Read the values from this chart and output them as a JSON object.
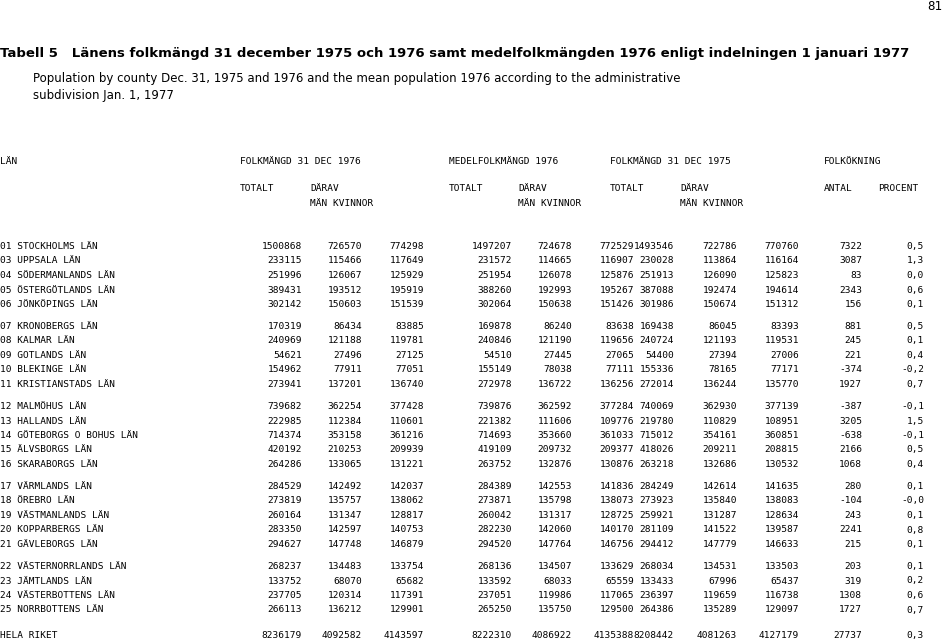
{
  "page_number": "81",
  "title_bold": "Tabell 5   Länens folkmängd 31 december 1975 och 1976 samt medelfolkmängden 1976 enligt indelningen 1 januari 1977",
  "title_sub1": "Population by county Dec. 31, 1975 and 1976 and the mean population 1976 according to the administrative",
  "title_sub2": "subdivision Jan. 1, 1977",
  "rows": [
    [
      "01 STOCKHOLMS LÄN",
      "1500868",
      "726570",
      "774298",
      "1497207",
      "724678",
      "772529",
      "1493546",
      "722786",
      "770760",
      "7322",
      "0,5"
    ],
    [
      "03 UPPSALA LÄN",
      "233115",
      "115466",
      "117649",
      "231572",
      "114665",
      "116907",
      "230028",
      "113864",
      "116164",
      "3087",
      "1,3"
    ],
    [
      "04 SÖDERMANLANDS LÄN",
      "251996",
      "126067",
      "125929",
      "251954",
      "126078",
      "125876",
      "251913",
      "126090",
      "125823",
      "83",
      "0,0"
    ],
    [
      "05 ÖSTERGÖTLANDS LÄN",
      "389431",
      "193512",
      "195919",
      "388260",
      "192993",
      "195267",
      "387088",
      "192474",
      "194614",
      "2343",
      "0,6"
    ],
    [
      "06 JÖNKÖPINGS LÄN",
      "302142",
      "150603",
      "151539",
      "302064",
      "150638",
      "151426",
      "301986",
      "150674",
      "151312",
      "156",
      "0,1"
    ],
    [
      "07 KRONOBERGS LÄN",
      "170319",
      "86434",
      "83885",
      "169878",
      "86240",
      "83638",
      "169438",
      "86045",
      "83393",
      "881",
      "0,5"
    ],
    [
      "08 KALMAR LÄN",
      "240969",
      "121188",
      "119781",
      "240846",
      "121190",
      "119656",
      "240724",
      "121193",
      "119531",
      "245",
      "0,1"
    ],
    [
      "09 GOTLANDS LÄN",
      "54621",
      "27496",
      "27125",
      "54510",
      "27445",
      "27065",
      "54400",
      "27394",
      "27006",
      "221",
      "0,4"
    ],
    [
      "10 BLEKINGE LÄN",
      "154962",
      "77911",
      "77051",
      "155149",
      "78038",
      "77111",
      "155336",
      "78165",
      "77171",
      "-374",
      "-0,2"
    ],
    [
      "11 KRISTIANSTADS LÄN",
      "273941",
      "137201",
      "136740",
      "272978",
      "136722",
      "136256",
      "272014",
      "136244",
      "135770",
      "1927",
      "0,7"
    ],
    [
      "12 MALMÖHUS LÄN",
      "739682",
      "362254",
      "377428",
      "739876",
      "362592",
      "377284",
      "740069",
      "362930",
      "377139",
      "-387",
      "-0,1"
    ],
    [
      "13 HALLANDS LÄN",
      "222985",
      "112384",
      "110601",
      "221382",
      "111606",
      "109776",
      "219780",
      "110829",
      "108951",
      "3205",
      "1,5"
    ],
    [
      "14 GÖTEBORGS O BOHUS LÄN",
      "714374",
      "353158",
      "361216",
      "714693",
      "353660",
      "361033",
      "715012",
      "354161",
      "360851",
      "-638",
      "-0,1"
    ],
    [
      "15 ÄLVSBORGS LÄN",
      "420192",
      "210253",
      "209939",
      "419109",
      "209732",
      "209377",
      "418026",
      "209211",
      "208815",
      "2166",
      "0,5"
    ],
    [
      "16 SKARABORGS LÄN",
      "264286",
      "133065",
      "131221",
      "263752",
      "132876",
      "130876",
      "263218",
      "132686",
      "130532",
      "1068",
      "0,4"
    ],
    [
      "17 VÄRMLANDS LÄN",
      "284529",
      "142492",
      "142037",
      "284389",
      "142553",
      "141836",
      "284249",
      "142614",
      "141635",
      "280",
      "0,1"
    ],
    [
      "18 ÖREBRO LÄN",
      "273819",
      "135757",
      "138062",
      "273871",
      "135798",
      "138073",
      "273923",
      "135840",
      "138083",
      "-104",
      "-0,0"
    ],
    [
      "19 VÄSTMANLANDS LÄN",
      "260164",
      "131347",
      "128817",
      "260042",
      "131317",
      "128725",
      "259921",
      "131287",
      "128634",
      "243",
      "0,1"
    ],
    [
      "20 KOPPARBERGS LÄN",
      "283350",
      "142597",
      "140753",
      "282230",
      "142060",
      "140170",
      "281109",
      "141522",
      "139587",
      "2241",
      "0,8"
    ],
    [
      "21 GÄVLEBORGS LÄN",
      "294627",
      "147748",
      "146879",
      "294520",
      "147764",
      "146756",
      "294412",
      "147779",
      "146633",
      "215",
      "0,1"
    ],
    [
      "22 VÄSTERNORRLANDS LÄN",
      "268237",
      "134483",
      "133754",
      "268136",
      "134507",
      "133629",
      "268034",
      "134531",
      "133503",
      "203",
      "0,1"
    ],
    [
      "23 JÄMTLANDS LÄN",
      "133752",
      "68070",
      "65682",
      "133592",
      "68033",
      "65559",
      "133433",
      "67996",
      "65437",
      "319",
      "0,2"
    ],
    [
      "24 VÄSTERBOTTENS LÄN",
      "237705",
      "120314",
      "117391",
      "237051",
      "119986",
      "117065",
      "236397",
      "119659",
      "116738",
      "1308",
      "0,6"
    ],
    [
      "25 NORRBOTTENS LÄN",
      "266113",
      "136212",
      "129901",
      "265250",
      "135750",
      "129500",
      "264386",
      "135289",
      "129097",
      "1727",
      "0,7"
    ]
  ],
  "total_row": [
    "HELA RIKET",
    "8236179",
    "4092582",
    "4143597",
    "8222310",
    "4086922",
    "4135388",
    "8208442",
    "4081263",
    "4127179",
    "27737",
    "0,3"
  ],
  "group_breaks": [
    5,
    10,
    15,
    20
  ],
  "background_color": "#ffffff",
  "text_color": "#000000"
}
